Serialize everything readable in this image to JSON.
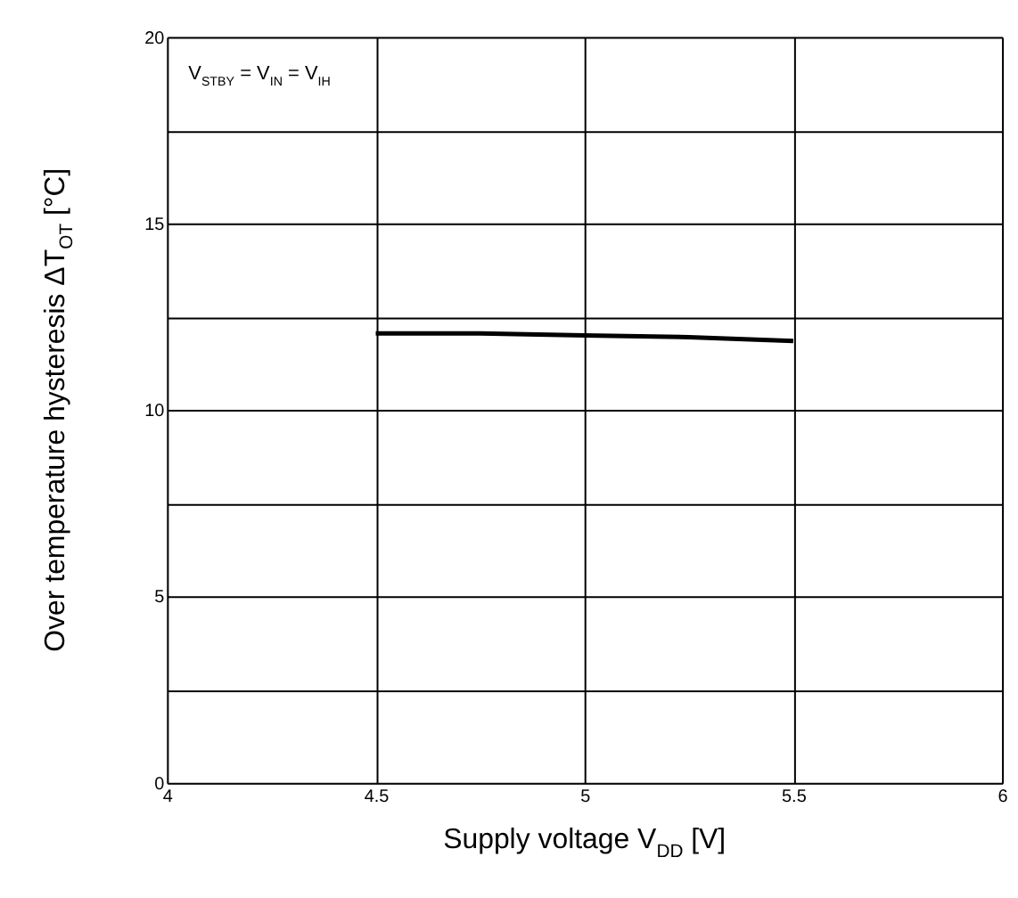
{
  "chart_data": {
    "type": "line",
    "xlabel": "Supply voltage V$_{DD}$ [V]",
    "ylabel": "Over temperature hysteresis ΔT$_{OT}$ [°C]",
    "x": [
      4.5,
      4.75,
      5,
      5.25,
      5.5
    ],
    "series": [
      {
        "color": "#000000",
        "values": [
          12.05,
          12.05,
          12.0,
          11.95,
          11.85
        ]
      }
    ],
    "xlim": [
      4,
      6
    ],
    "xticks": [
      4,
      4.5,
      5,
      5.5,
      6
    ],
    "ylim": [
      0,
      20
    ],
    "yticks": [
      0,
      {
        "value": 2.5,
        "label": null
      },
      5,
      {
        "value": 7.5,
        "label": null
      },
      10,
      {
        "value": 12.5,
        "label": null
      },
      15,
      {
        "value": 17.5,
        "label": null
      },
      20
    ],
    "grid": true,
    "marker": "none",
    "line_style": "solid",
    "annotations": [
      "V$_{STBY}$ = V$_{IN}$ = V$_{IH}$"
    ]
  }
}
